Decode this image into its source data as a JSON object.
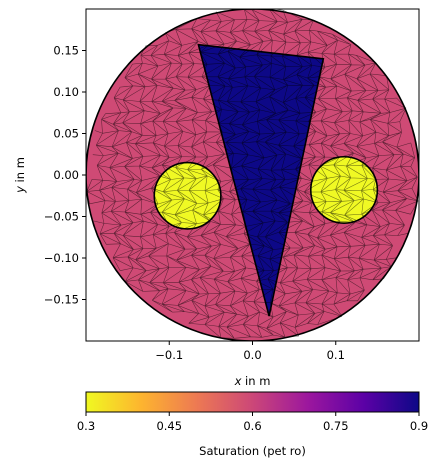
{
  "chart_data": {
    "type": "heatmap",
    "title": "",
    "xlabel": {
      "var": "x",
      "rest": " in m"
    },
    "ylabel": {
      "var": "y",
      "rest": " in m"
    },
    "xlim": [
      -0.2,
      0.2
    ],
    "ylim": [
      -0.2,
      0.2
    ],
    "xticks": [
      -0.1,
      0.0,
      0.1
    ],
    "xtick_labels": [
      "−0.1",
      "0.0",
      "0.1"
    ],
    "yticks": [
      0.15,
      0.1,
      0.05,
      0.0,
      -0.05,
      -0.1,
      -0.15
    ],
    "ytick_labels": [
      "0.15",
      "0.10",
      "0.05",
      "0.00",
      "−0.05",
      "−0.10",
      "−0.15"
    ],
    "regions": [
      {
        "name": "domain-disk",
        "shape": "circle",
        "center": [
          0.0,
          0.0
        ],
        "radius": 0.2,
        "saturation": 0.62,
        "color": "#cf4a75"
      },
      {
        "name": "left-inclusion",
        "shape": "circle",
        "center": [
          -0.078,
          -0.025
        ],
        "radius": 0.04,
        "saturation": 0.3,
        "color": "#f0f924"
      },
      {
        "name": "right-inclusion",
        "shape": "circle",
        "center": [
          0.11,
          -0.018
        ],
        "radius": 0.04,
        "saturation": 0.3,
        "color": "#f0f924"
      },
      {
        "name": "wedge",
        "shape": "polygon",
        "points": [
          [
            -0.065,
            0.157
          ],
          [
            0.085,
            0.14
          ],
          [
            0.02,
            -0.17
          ]
        ],
        "saturation": 0.9,
        "color": "#0d0887"
      }
    ],
    "colorbar": {
      "label": "Saturation (pet ro)",
      "min": 0.3,
      "max": 0.9,
      "ticks": [
        0.3,
        0.45,
        0.6,
        0.75,
        0.9
      ],
      "tick_labels": [
        "0.3",
        "0.45",
        "0.6",
        "0.75",
        "0.9"
      ],
      "colormap": "plasma_r",
      "stops": [
        "#f0f921",
        "#fdb42f",
        "#ed7953",
        "#cc4778",
        "#9c179e",
        "#5c01a6",
        "#0d0887"
      ]
    },
    "grid": false,
    "legend": "none"
  }
}
